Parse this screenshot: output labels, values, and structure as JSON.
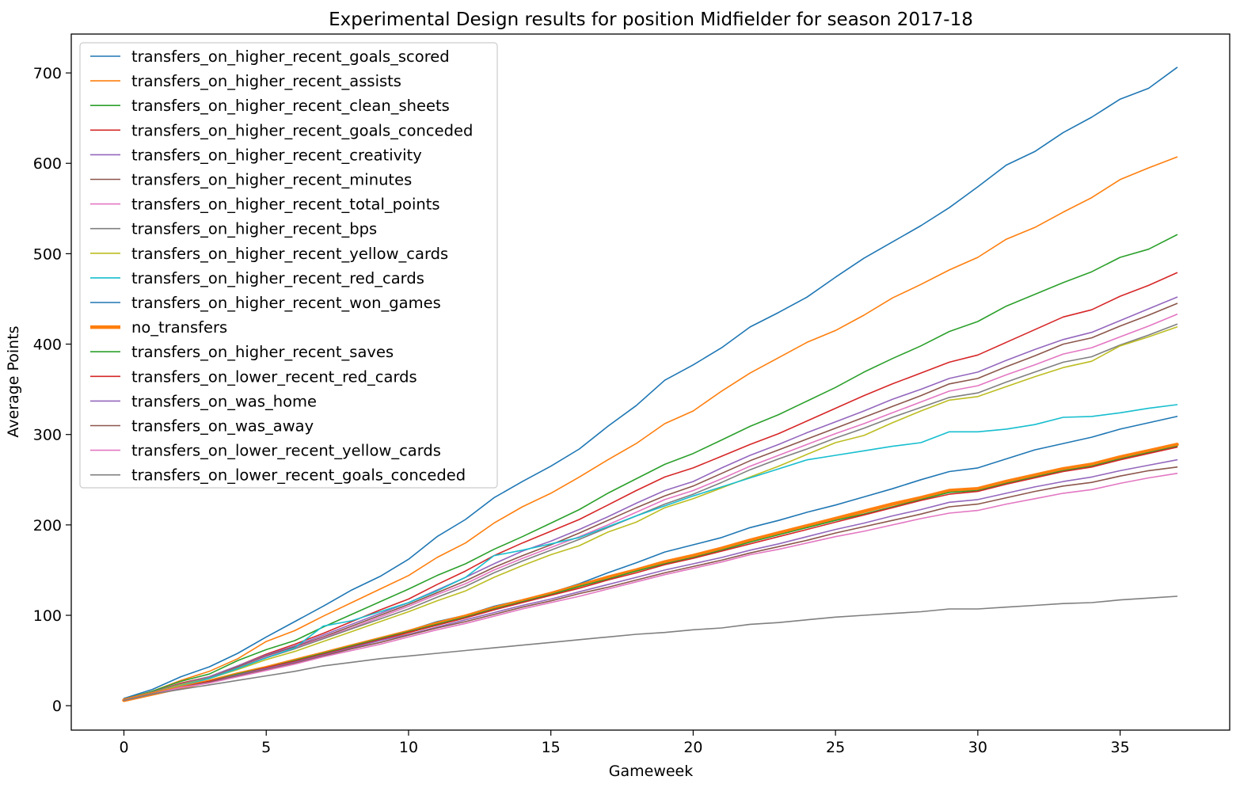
{
  "chart_data": {
    "type": "line",
    "title": "Experimental Design results for position Midfielder for season 2017-18",
    "xlabel": "Gameweek",
    "ylabel": "Average Points",
    "xlim": [
      -1.85,
      38.85
    ],
    "ylim": [
      -27,
      743
    ],
    "xticks": [
      0,
      5,
      10,
      15,
      20,
      25,
      30,
      35
    ],
    "yticks": [
      0,
      100,
      200,
      300,
      400,
      500,
      600,
      700
    ],
    "grid": false,
    "legend_position": "upper-left",
    "x": [
      0,
      1,
      2,
      3,
      4,
      5,
      6,
      7,
      8,
      9,
      10,
      11,
      12,
      13,
      14,
      15,
      16,
      17,
      18,
      19,
      20,
      21,
      22,
      23,
      24,
      25,
      26,
      27,
      28,
      29,
      30,
      31,
      32,
      33,
      34,
      35,
      36,
      37
    ],
    "series": [
      {
        "name": "transfers_on_higher_recent_goals_scored",
        "color": "#1f77b4",
        "width": 1.6,
        "values": [
          8,
          18,
          32,
          43,
          58,
          76,
          93,
          110,
          128,
          143,
          162,
          187,
          206,
          230,
          248,
          265,
          284,
          309,
          332,
          360,
          377,
          396,
          419,
          435,
          452,
          474,
          495,
          513,
          531,
          551,
          574,
          598,
          613,
          634,
          651,
          671,
          683,
          706
        ]
      },
      {
        "name": "transfers_on_higher_recent_assists",
        "color": "#ff7f0e",
        "width": 1.6,
        "values": [
          7,
          16,
          28,
          38,
          52,
          71,
          83,
          99,
          114,
          129,
          144,
          164,
          180,
          202,
          220,
          235,
          253,
          272,
          290,
          312,
          326,
          348,
          368,
          385,
          402,
          415,
          432,
          451,
          466,
          482,
          496,
          516,
          529,
          546,
          562,
          582,
          595,
          607
        ]
      },
      {
        "name": "transfers_on_higher_recent_clean_sheets",
        "color": "#2ca02c",
        "width": 1.6,
        "values": [
          7,
          16,
          27,
          35,
          50,
          62,
          72,
          87,
          101,
          115,
          129,
          144,
          157,
          173,
          187,
          202,
          217,
          235,
          251,
          267,
          279,
          294,
          309,
          322,
          337,
          352,
          369,
          384,
          398,
          414,
          425,
          442,
          455,
          468,
          480,
          496,
          505,
          521
        ]
      },
      {
        "name": "transfers_on_higher_recent_goals_conceded",
        "color": "#d62728",
        "width": 1.6,
        "values": [
          7,
          15,
          25,
          32,
          44,
          57,
          68,
          80,
          93,
          106,
          118,
          134,
          149,
          166,
          180,
          193,
          206,
          222,
          238,
          253,
          263,
          276,
          289,
          301,
          315,
          329,
          343,
          356,
          368,
          380,
          388,
          402,
          416,
          430,
          438,
          453,
          465,
          479
        ]
      },
      {
        "name": "transfers_on_higher_recent_creativity",
        "color": "#9467bd",
        "width": 1.6,
        "values": [
          7,
          15,
          24,
          32,
          44,
          56,
          66,
          78,
          90,
          102,
          114,
          128,
          142,
          157,
          171,
          182,
          195,
          209,
          224,
          238,
          248,
          263,
          277,
          289,
          302,
          314,
          326,
          339,
          350,
          362,
          369,
          382,
          394,
          405,
          413,
          426,
          439,
          452
        ]
      },
      {
        "name": "transfers_on_higher_recent_minutes",
        "color": "#8c564b",
        "width": 1.6,
        "values": [
          7,
          15,
          24,
          31,
          43,
          55,
          65,
          76,
          88,
          100,
          112,
          125,
          138,
          153,
          166,
          178,
          191,
          205,
          219,
          232,
          243,
          257,
          271,
          283,
          295,
          307,
          319,
          331,
          343,
          356,
          362,
          375,
          387,
          400,
          407,
          420,
          432,
          445
        ]
      },
      {
        "name": "transfers_on_higher_recent_total_points",
        "color": "#e377c2",
        "width": 1.6,
        "values": [
          7,
          15,
          24,
          31,
          42,
          54,
          64,
          75,
          86,
          98,
          110,
          123,
          135,
          150,
          163,
          175,
          187,
          200,
          214,
          228,
          238,
          251,
          265,
          277,
          289,
          301,
          312,
          324,
          336,
          348,
          354,
          366,
          377,
          389,
          396,
          408,
          420,
          433
        ]
      },
      {
        "name": "transfers_on_higher_recent_bps",
        "color": "#7f7f7f",
        "width": 1.6,
        "values": [
          7,
          15,
          24,
          31,
          42,
          53,
          63,
          74,
          85,
          96,
          107,
          120,
          132,
          147,
          160,
          172,
          184,
          197,
          210,
          223,
          234,
          247,
          261,
          273,
          284,
          296,
          307,
          319,
          330,
          341,
          346,
          358,
          369,
          380,
          386,
          399,
          410,
          422
        ]
      },
      {
        "name": "transfers_on_higher_recent_yellow_cards",
        "color": "#bcbd22",
        "width": 1.6,
        "values": [
          7,
          14,
          23,
          30,
          40,
          51,
          60,
          71,
          82,
          93,
          104,
          116,
          127,
          142,
          155,
          167,
          177,
          192,
          203,
          219,
          229,
          241,
          253,
          265,
          278,
          291,
          299,
          313,
          326,
          338,
          342,
          353,
          364,
          374,
          381,
          398,
          408,
          419
        ]
      },
      {
        "name": "transfers_on_higher_recent_red_cards",
        "color": "#17becf",
        "width": 1.6,
        "values": [
          6,
          14,
          22,
          30,
          41,
          53,
          64,
          88,
          94,
          104,
          114,
          127,
          142,
          166,
          172,
          179,
          186,
          198,
          210,
          221,
          232,
          242,
          252,
          262,
          272,
          277,
          282,
          287,
          291,
          303,
          303,
          306,
          311,
          319,
          320,
          324,
          329,
          333
        ]
      },
      {
        "name": "transfers_on_higher_recent_won_games",
        "color": "#1f77b4",
        "width": 1.6,
        "values": [
          6,
          13,
          20,
          27,
          35,
          43,
          51,
          59,
          67,
          75,
          83,
          93,
          100,
          110,
          117,
          125,
          135,
          147,
          158,
          170,
          178,
          186,
          197,
          205,
          214,
          222,
          231,
          240,
          250,
          259,
          263,
          273,
          283,
          290,
          297,
          306,
          313,
          320
        ]
      },
      {
        "name": "no_transfers",
        "color": "#ff7f0e",
        "width": 4.5,
        "values": [
          6,
          13,
          20,
          27,
          35,
          42,
          50,
          58,
          66,
          74,
          82,
          91,
          99,
          108,
          116,
          124,
          133,
          142,
          150,
          159,
          166,
          174,
          183,
          191,
          199,
          207,
          215,
          223,
          230,
          238,
          240,
          248,
          255,
          262,
          267,
          275,
          282,
          289
        ]
      },
      {
        "name": "transfers_on_higher_recent_saves",
        "color": "#2ca02c",
        "width": 1.6,
        "values": [
          6,
          13,
          20,
          27,
          35,
          42,
          50,
          58,
          66,
          74,
          82,
          90,
          98,
          107,
          115,
          123,
          132,
          140,
          149,
          157,
          164,
          172,
          181,
          189,
          197,
          205,
          212,
          220,
          228,
          236,
          238,
          246,
          253,
          260,
          265,
          273,
          280,
          287
        ]
      },
      {
        "name": "transfers_on_lower_recent_red_cards",
        "color": "#d62728",
        "width": 1.6,
        "values": [
          6,
          13,
          20,
          27,
          34,
          42,
          49,
          57,
          65,
          73,
          81,
          89,
          97,
          106,
          114,
          122,
          130,
          139,
          147,
          156,
          163,
          171,
          179,
          187,
          195,
          203,
          211,
          219,
          227,
          234,
          237,
          245,
          252,
          259,
          264,
          272,
          279,
          286
        ]
      },
      {
        "name": "transfers_on_was_home",
        "color": "#9467bd",
        "width": 1.6,
        "values": [
          6,
          13,
          20,
          26,
          34,
          41,
          48,
          56,
          64,
          72,
          79,
          87,
          95,
          103,
          111,
          118,
          126,
          134,
          142,
          150,
          157,
          164,
          172,
          179,
          187,
          195,
          202,
          210,
          217,
          225,
          228,
          235,
          242,
          248,
          253,
          260,
          266,
          272
        ]
      },
      {
        "name": "transfers_on_was_away",
        "color": "#8c564b",
        "width": 1.6,
        "values": [
          6,
          13,
          20,
          26,
          33,
          40,
          47,
          55,
          63,
          70,
          78,
          86,
          93,
          101,
          109,
          116,
          124,
          131,
          139,
          147,
          154,
          161,
          169,
          176,
          183,
          191,
          198,
          205,
          212,
          220,
          223,
          230,
          237,
          243,
          247,
          254,
          260,
          264
        ]
      },
      {
        "name": "transfers_on_lower_recent_yellow_cards",
        "color": "#e377c2",
        "width": 1.6,
        "values": [
          6,
          13,
          20,
          25,
          32,
          39,
          46,
          54,
          61,
          68,
          76,
          84,
          91,
          99,
          107,
          114,
          121,
          129,
          137,
          145,
          152,
          159,
          167,
          173,
          180,
          187,
          193,
          200,
          207,
          213,
          216,
          223,
          229,
          235,
          239,
          246,
          252,
          257
        ]
      },
      {
        "name": "transfers_on_lower_recent_goals_conceded",
        "color": "#7f7f7f",
        "width": 1.6,
        "values": [
          6,
          13,
          18,
          23,
          28,
          33,
          38,
          44,
          48,
          52,
          55,
          58,
          61,
          64,
          67,
          70,
          73,
          76,
          79,
          81,
          84,
          86,
          90,
          92,
          95,
          98,
          100,
          102,
          104,
          107,
          107,
          109,
          111,
          113,
          114,
          117,
          119,
          121
        ]
      }
    ]
  }
}
